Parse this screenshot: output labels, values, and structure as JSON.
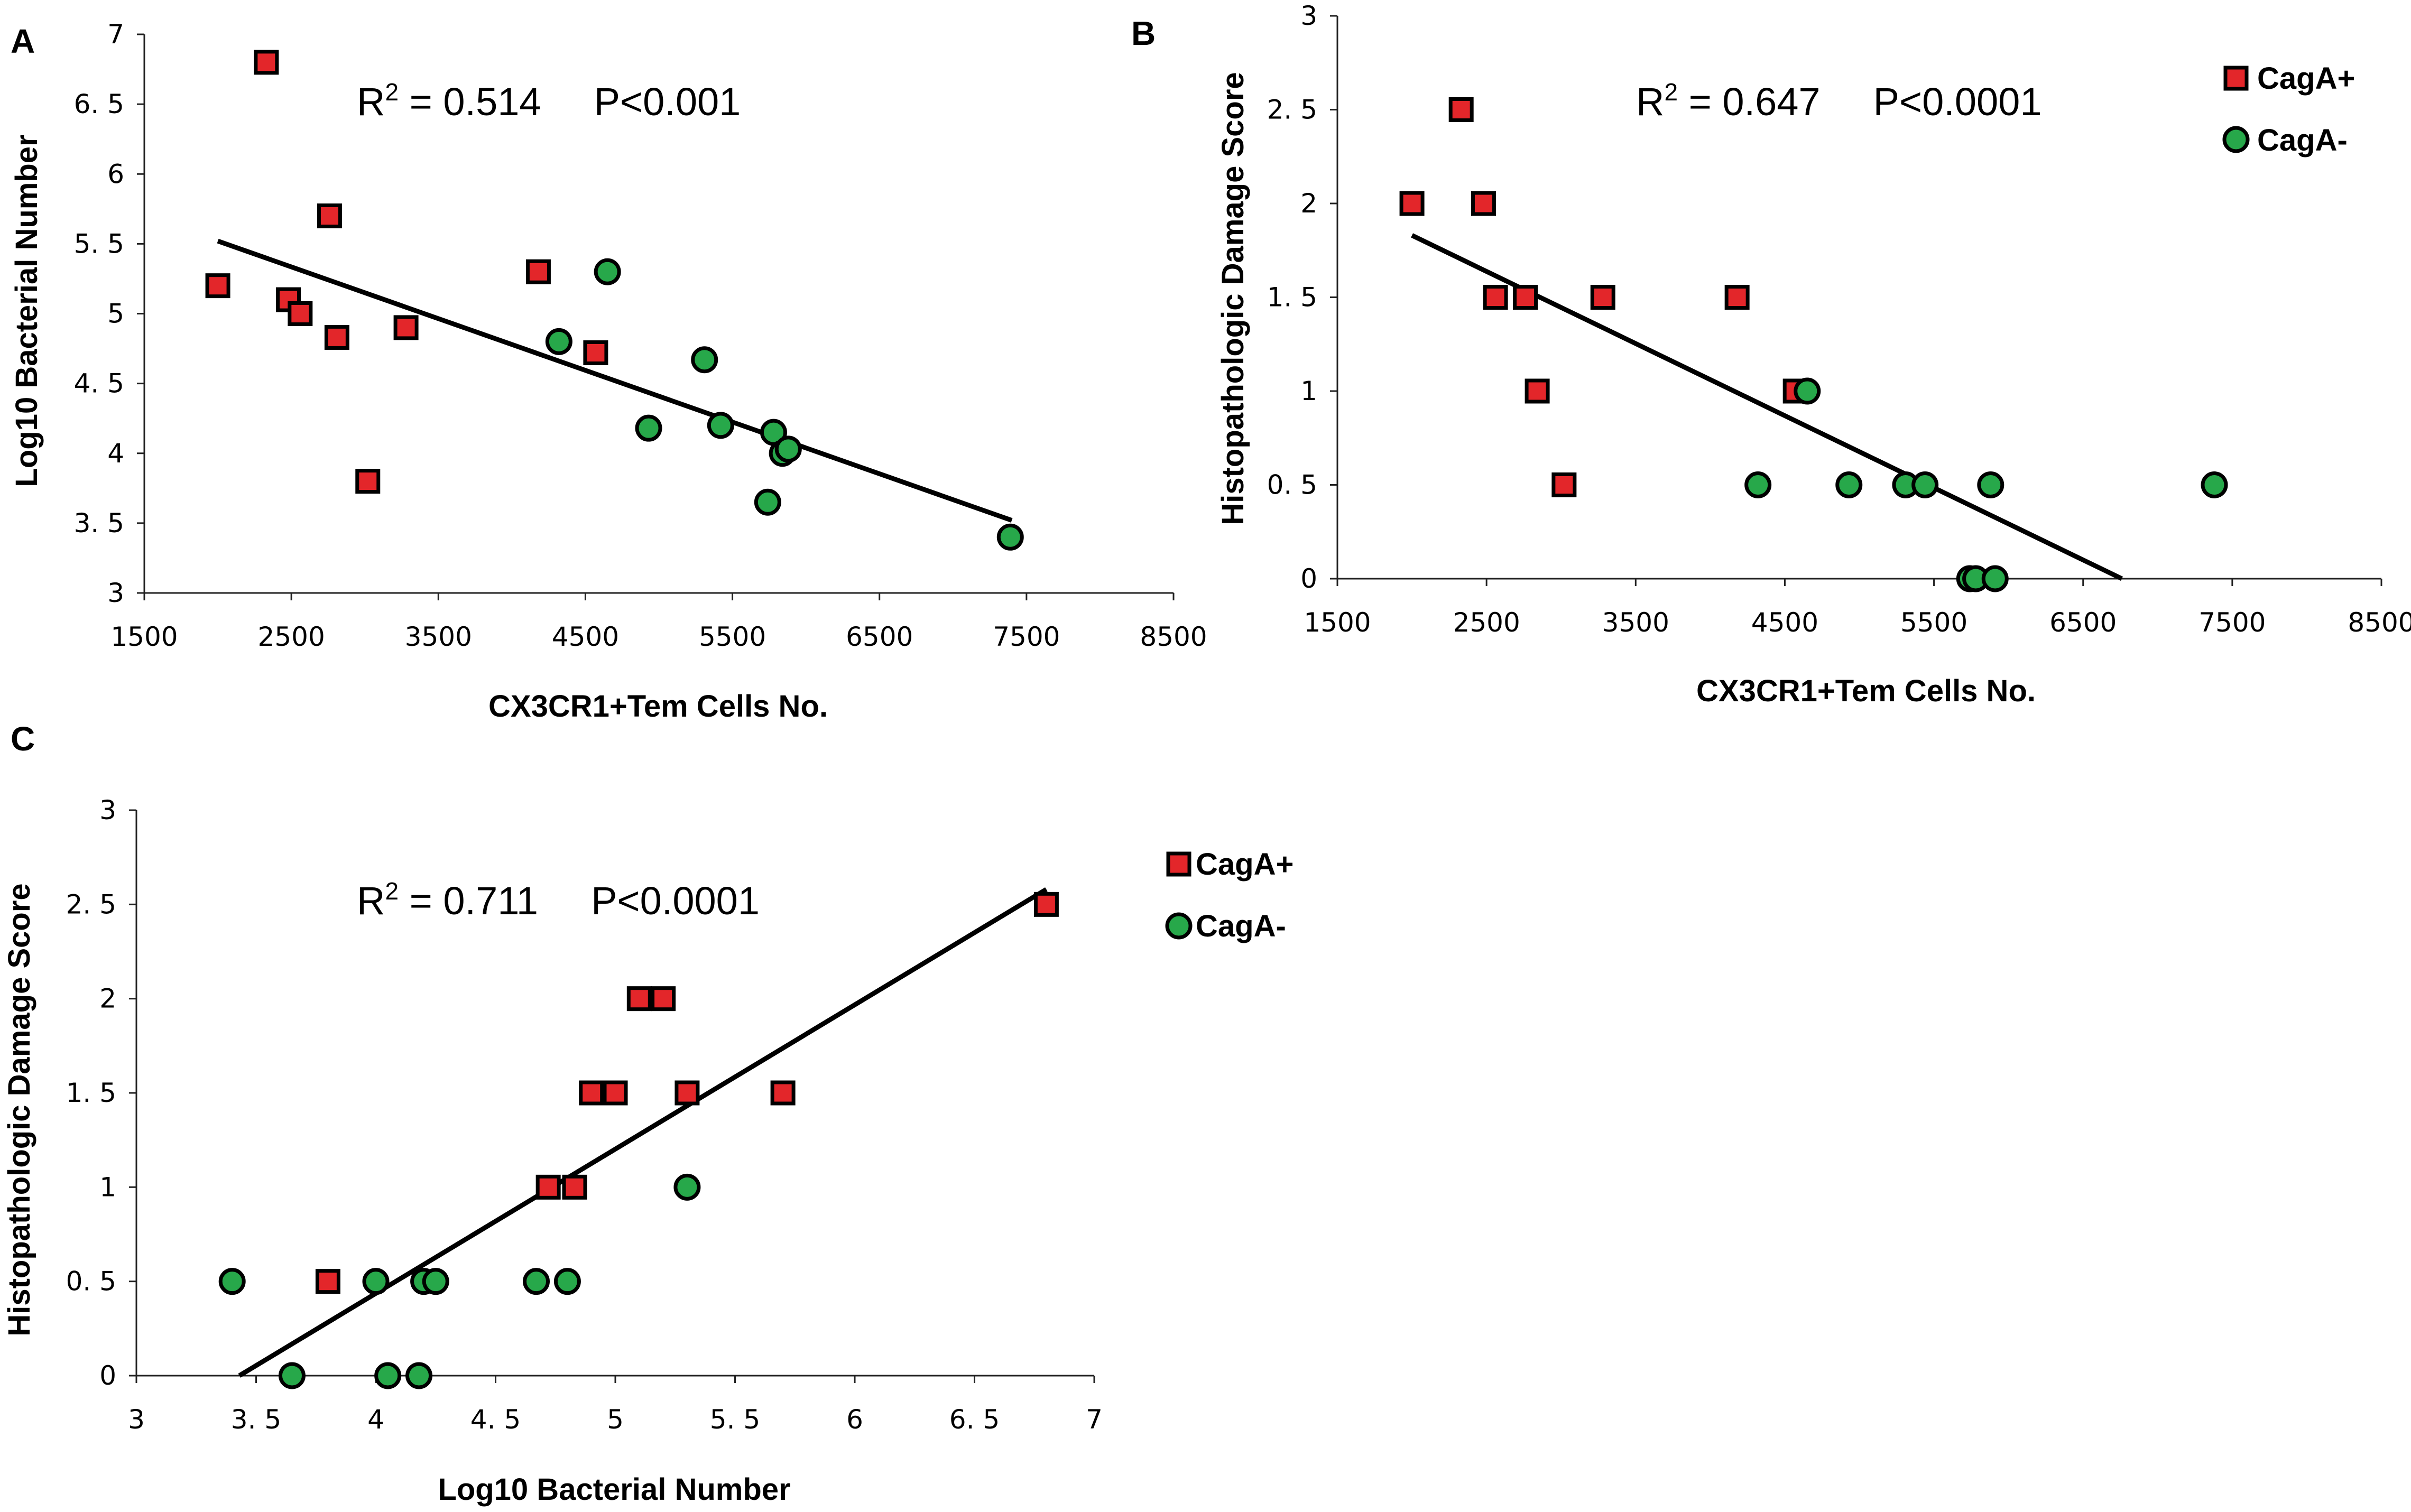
{
  "colors": {
    "cagA_pos": "#e3262a",
    "cagA_neg": "#27a84a",
    "stroke": "#000000",
    "axis": "#222222"
  },
  "chart_data": [
    {
      "panel": "A",
      "type": "scatter",
      "xlabel": "CX3CR1+Tem Cells No.",
      "ylabel": "Log10 Bacterial Number",
      "xlim": [
        1500,
        8500
      ],
      "ylim": [
        3,
        7
      ],
      "xticks": [
        "1500",
        "2500",
        "3500",
        "4500",
        "5500",
        "6500",
        "7500",
        "8500"
      ],
      "yticks": [
        "3",
        "3. 5",
        "4",
        "4. 5",
        "5",
        "5. 5",
        "6",
        "6. 5",
        "7"
      ],
      "annotation": {
        "r2_label": "R",
        "r2_exp": "2",
        "r2_value": " = 0.514",
        "p_value": "P<0.001"
      },
      "legend": null,
      "trendline": [
        [
          2000,
          5.52
        ],
        [
          7400,
          3.52
        ]
      ],
      "series": [
        {
          "name": "CagA+",
          "marker": "square",
          "points": [
            [
              2000,
              5.2
            ],
            [
              2330,
              6.8
            ],
            [
              2480,
              5.1
            ],
            [
              2560,
              5.0
            ],
            [
              2760,
              5.7
            ],
            [
              2810,
              4.83
            ],
            [
              3020,
              3.8
            ],
            [
              3280,
              4.9
            ],
            [
              4180,
              5.3
            ],
            [
              4570,
              4.72
            ]
          ]
        },
        {
          "name": "CagA-",
          "marker": "circle",
          "points": [
            [
              4320,
              4.8
            ],
            [
              4650,
              5.3
            ],
            [
              4930,
              4.18
            ],
            [
              5310,
              4.67
            ],
            [
              5420,
              4.2
            ],
            [
              5740,
              3.65
            ],
            [
              5780,
              4.15
            ],
            [
              5840,
              4.0
            ],
            [
              5880,
              4.03
            ],
            [
              7390,
              3.4
            ]
          ]
        }
      ]
    },
    {
      "panel": "B",
      "type": "scatter",
      "xlabel": "CX3CR1+Tem Cells No.",
      "ylabel": "Histopathologic Damage Score",
      "xlim": [
        1500,
        8500
      ],
      "ylim": [
        0,
        3
      ],
      "xticks": [
        "1500",
        "2500",
        "3500",
        "4500",
        "5500",
        "6500",
        "7500",
        "8500"
      ],
      "yticks": [
        "0",
        "0. 5",
        "1",
        "1. 5",
        "2",
        "2. 5",
        "3"
      ],
      "annotation": {
        "r2_label": "R",
        "r2_exp": "2",
        "r2_value": " = 0.647",
        "p_value": "P<0.0001"
      },
      "legend": {
        "items": [
          "CagA+",
          "CagA-"
        ]
      },
      "trendline": [
        [
          2000,
          1.83
        ],
        [
          6760,
          0.0
        ]
      ],
      "series": [
        {
          "name": "CagA+",
          "marker": "square",
          "points": [
            [
              2000,
              2.0
            ],
            [
              2330,
              2.5
            ],
            [
              2480,
              2.0
            ],
            [
              2560,
              1.5
            ],
            [
              2760,
              1.5
            ],
            [
              2840,
              1.0
            ],
            [
              3020,
              0.5
            ],
            [
              3280,
              1.5
            ],
            [
              4180,
              1.5
            ],
            [
              4570,
              1.0
            ]
          ]
        },
        {
          "name": "CagA-",
          "marker": "circle",
          "points": [
            [
              4320,
              0.5
            ],
            [
              4650,
              1.0
            ],
            [
              4930,
              0.5
            ],
            [
              5310,
              0.5
            ],
            [
              5440,
              0.5
            ],
            [
              5740,
              0.0
            ],
            [
              5780,
              0.0
            ],
            [
              5880,
              0.5
            ],
            [
              5910,
              0.0
            ],
            [
              7380,
              0.5
            ]
          ]
        }
      ]
    },
    {
      "panel": "C",
      "type": "scatter",
      "xlabel": "Log10 Bacterial Number",
      "ylabel": "Histopathologic Damage Score",
      "xlim": [
        3,
        7
      ],
      "ylim": [
        0,
        3
      ],
      "xticks": [
        "3",
        "3. 5",
        "4",
        "4. 5",
        "5",
        "5. 5",
        "6",
        "6. 5",
        "7"
      ],
      "yticks": [
        "0",
        "0. 5",
        "1",
        "1. 5",
        "2",
        "2. 5",
        "3"
      ],
      "annotation": {
        "r2_label": "R",
        "r2_exp": "2",
        "r2_value": " = 0.711",
        "p_value": "P<0.0001"
      },
      "legend": {
        "items": [
          "CagA+",
          "CagA-"
        ]
      },
      "trendline": [
        [
          3.43,
          0.0
        ],
        [
          6.8,
          2.58
        ]
      ],
      "series": [
        {
          "name": "CagA+",
          "marker": "square",
          "points": [
            [
              3.8,
              0.5
            ],
            [
              4.72,
              1.0
            ],
            [
              4.83,
              1.0
            ],
            [
              4.9,
              1.5
            ],
            [
              5.0,
              1.5
            ],
            [
              5.1,
              2.0
            ],
            [
              5.2,
              2.0
            ],
            [
              5.3,
              1.5
            ],
            [
              5.7,
              1.5
            ],
            [
              6.8,
              2.5
            ]
          ]
        },
        {
          "name": "CagA-",
          "marker": "circle",
          "points": [
            [
              3.4,
              0.5
            ],
            [
              3.65,
              0.0
            ],
            [
              4.0,
              0.5
            ],
            [
              4.05,
              0.0
            ],
            [
              4.18,
              0.0
            ],
            [
              4.2,
              0.5
            ],
            [
              4.25,
              0.5
            ],
            [
              4.67,
              0.5
            ],
            [
              4.8,
              0.5
            ],
            [
              5.3,
              1.0
            ]
          ]
        }
      ]
    }
  ]
}
